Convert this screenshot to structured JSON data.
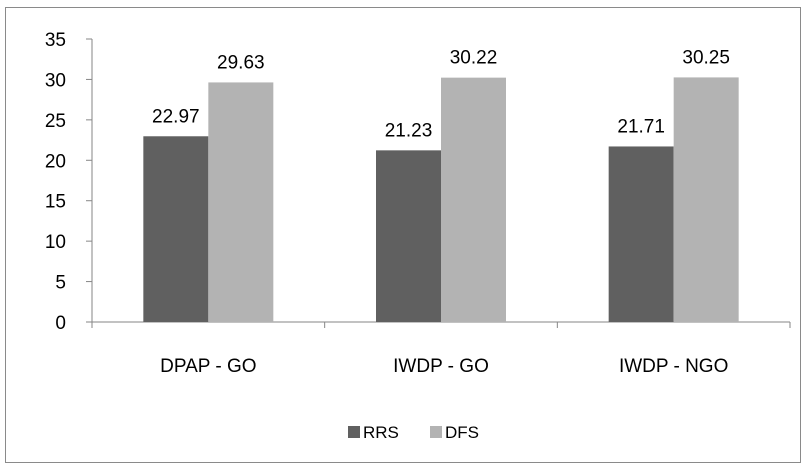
{
  "chart_data": {
    "type": "bar",
    "categories": [
      "DPAP - GO",
      "IWDP - GO",
      "IWDP - NGO"
    ],
    "series": [
      {
        "name": "RRS",
        "values": [
          22.97,
          21.23,
          21.71
        ],
        "color": "#606060"
      },
      {
        "name": "DFS",
        "values": [
          29.63,
          30.22,
          30.25
        ],
        "color": "#b3b3b3"
      }
    ],
    "data_labels": [
      [
        "22.97",
        "21.23",
        "21.71"
      ],
      [
        "29.63",
        "30.22",
        "30.25"
      ]
    ],
    "ylim": [
      0,
      35
    ],
    "y_ticks": [
      "0",
      "5",
      "10",
      "15",
      "20",
      "25",
      "30",
      "35"
    ],
    "grid": false,
    "legend_position": "bottom"
  }
}
